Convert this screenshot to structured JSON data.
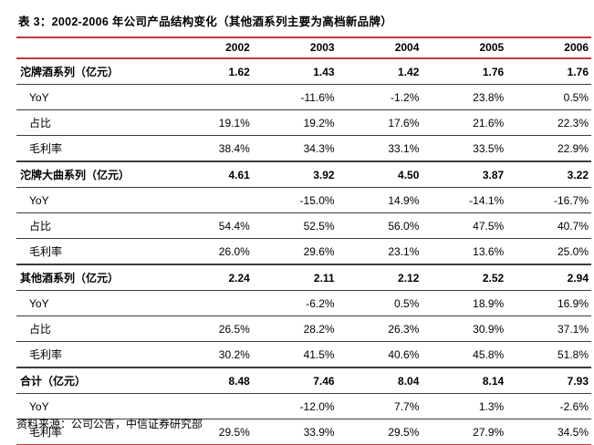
{
  "title": "表 3：2002-2006 年公司产品结构变化（其他酒系列主要为高档新品牌）",
  "source": "资料来源：公司公告，中信证券研究部",
  "colors": {
    "accent_red": "#C0393B",
    "divider_dark": "#3C3C3C",
    "background": "#FFFFFF",
    "text": "#000000"
  },
  "table": {
    "columns": [
      "",
      "2002",
      "2003",
      "2004",
      "2005",
      "2006"
    ],
    "rows": [
      {
        "label": "沱牌酒系列（亿元）",
        "bold": true,
        "section_start": false,
        "values": [
          "1.62",
          "1.43",
          "1.42",
          "1.76",
          "1.76"
        ]
      },
      {
        "label": "YoY",
        "bold": false,
        "section_start": false,
        "values": [
          "",
          "-11.6%",
          "-1.2%",
          "23.8%",
          "0.5%"
        ]
      },
      {
        "label": "占比",
        "bold": false,
        "section_start": false,
        "values": [
          "19.1%",
          "19.2%",
          "17.6%",
          "21.6%",
          "22.3%"
        ]
      },
      {
        "label": "毛利率",
        "bold": false,
        "section_start": false,
        "values": [
          "38.4%",
          "34.3%",
          "33.1%",
          "33.5%",
          "22.9%"
        ]
      },
      {
        "label": "沱牌大曲系列（亿元）",
        "bold": true,
        "section_start": true,
        "values": [
          "4.61",
          "3.92",
          "4.50",
          "3.87",
          "3.22"
        ]
      },
      {
        "label": "YoY",
        "bold": false,
        "section_start": false,
        "values": [
          "",
          "-15.0%",
          "14.9%",
          "-14.1%",
          "-16.7%"
        ]
      },
      {
        "label": "占比",
        "bold": false,
        "section_start": false,
        "values": [
          "54.4%",
          "52.5%",
          "56.0%",
          "47.5%",
          "40.7%"
        ]
      },
      {
        "label": "毛利率",
        "bold": false,
        "section_start": false,
        "values": [
          "26.0%",
          "29.6%",
          "23.1%",
          "13.6%",
          "25.0%"
        ]
      },
      {
        "label": "其他酒系列（亿元）",
        "bold": true,
        "section_start": true,
        "values": [
          "2.24",
          "2.11",
          "2.12",
          "2.52",
          "2.94"
        ]
      },
      {
        "label": "YoY",
        "bold": false,
        "section_start": false,
        "values": [
          "",
          "-6.2%",
          "0.5%",
          "18.9%",
          "16.9%"
        ]
      },
      {
        "label": "占比",
        "bold": false,
        "section_start": false,
        "values": [
          "26.5%",
          "28.2%",
          "26.3%",
          "30.9%",
          "37.1%"
        ]
      },
      {
        "label": "毛利率",
        "bold": false,
        "section_start": false,
        "values": [
          "30.2%",
          "41.5%",
          "40.6%",
          "45.8%",
          "51.8%"
        ]
      },
      {
        "label": "合计（亿元）",
        "bold": true,
        "section_start": true,
        "values": [
          "8.48",
          "7.46",
          "8.04",
          "8.14",
          "7.93"
        ]
      },
      {
        "label": "YoY",
        "bold": false,
        "section_start": false,
        "values": [
          "",
          "-12.0%",
          "7.7%",
          "1.3%",
          "-2.6%"
        ]
      },
      {
        "label": "毛利率",
        "bold": false,
        "section_start": false,
        "values": [
          "29.5%",
          "33.9%",
          "29.5%",
          "27.9%",
          "34.5%"
        ]
      }
    ]
  }
}
